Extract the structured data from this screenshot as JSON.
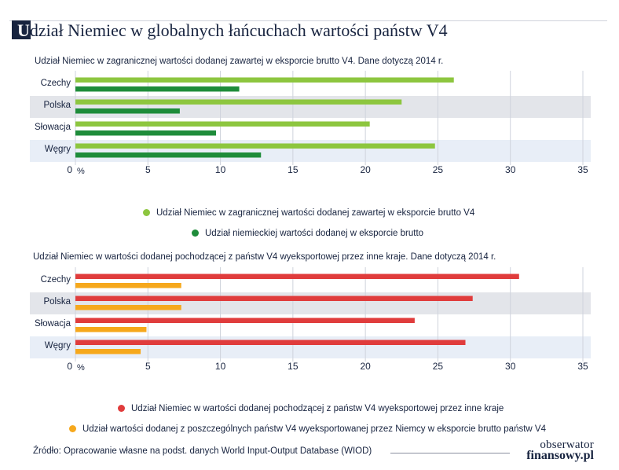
{
  "title": "Udział Niemiec w globalnych łańcuchach wartości państw V4",
  "title_first_letter": "U",
  "title_rest": "dział Niemiec w globalnych łańcuchach wartości państw V4",
  "source": "Źródło: Opracowanie własne na podst. danych World Input-Output Database (WIOD)",
  "logo": {
    "line1": "obserwator",
    "line2": "finansowy.pl"
  },
  "colors": {
    "title": "#17233f",
    "light_green": "#8dc63f",
    "dark_green": "#1e8c3a",
    "red": "#e03c3c",
    "orange": "#f6a81c",
    "band_gray": "#e3e5ea",
    "band_blue": "#e8eef7"
  },
  "chart_data": [
    {
      "type": "bar",
      "orientation": "horizontal",
      "title": "Udział Niemiec w zagranicznej wartości dodanej zawartej w eksporcie brutto V4. Dane dotyczą 2014 r.",
      "categories": [
        "Czechy",
        "Polska",
        "Słowacja",
        "Węgry"
      ],
      "series": [
        {
          "name": "Udział Niemiec w zagranicznej wartości dodanej zawartej w eksporcie brutto V4",
          "values": [
            26.1,
            22.5,
            20.3,
            24.8
          ]
        },
        {
          "name": "Udział niemieckiej wartości dodanej w eksporcie brutto",
          "values": [
            11.3,
            7.2,
            9.7,
            12.8
          ]
        }
      ],
      "xlim": [
        0,
        35
      ],
      "xticks": [
        "0",
        "5",
        "10",
        "15",
        "20",
        "25",
        "30",
        "35"
      ],
      "unit": "%",
      "grid": "vertical",
      "legend": "bottom"
    },
    {
      "type": "bar",
      "orientation": "horizontal",
      "title": "Udział Niemiec w wartości dodanej pochodzącej z państw V4 wyeksportowej przez inne kraje. Dane dotyczą 2014 r.",
      "categories": [
        "Czechy",
        "Polska",
        "Słowacja",
        "Węgry"
      ],
      "series": [
        {
          "name": "Udział Niemiec w wartości dodanej pochodzącej z państw V4 wyeksportowej przez inne kraje",
          "values": [
            30.6,
            27.4,
            23.4,
            26.9
          ]
        },
        {
          "name": "Udział wartości dodanej z poszczególnych państw V4 wyeksportowanej przez Niemcy w eksporcie brutto państw V4",
          "values": [
            7.3,
            7.3,
            4.9,
            4.5
          ]
        }
      ],
      "xlim": [
        0,
        35
      ],
      "xticks": [
        "0",
        "5",
        "10",
        "15",
        "20",
        "25",
        "30",
        "35"
      ],
      "unit": "%",
      "grid": "vertical",
      "legend": "bottom"
    }
  ]
}
